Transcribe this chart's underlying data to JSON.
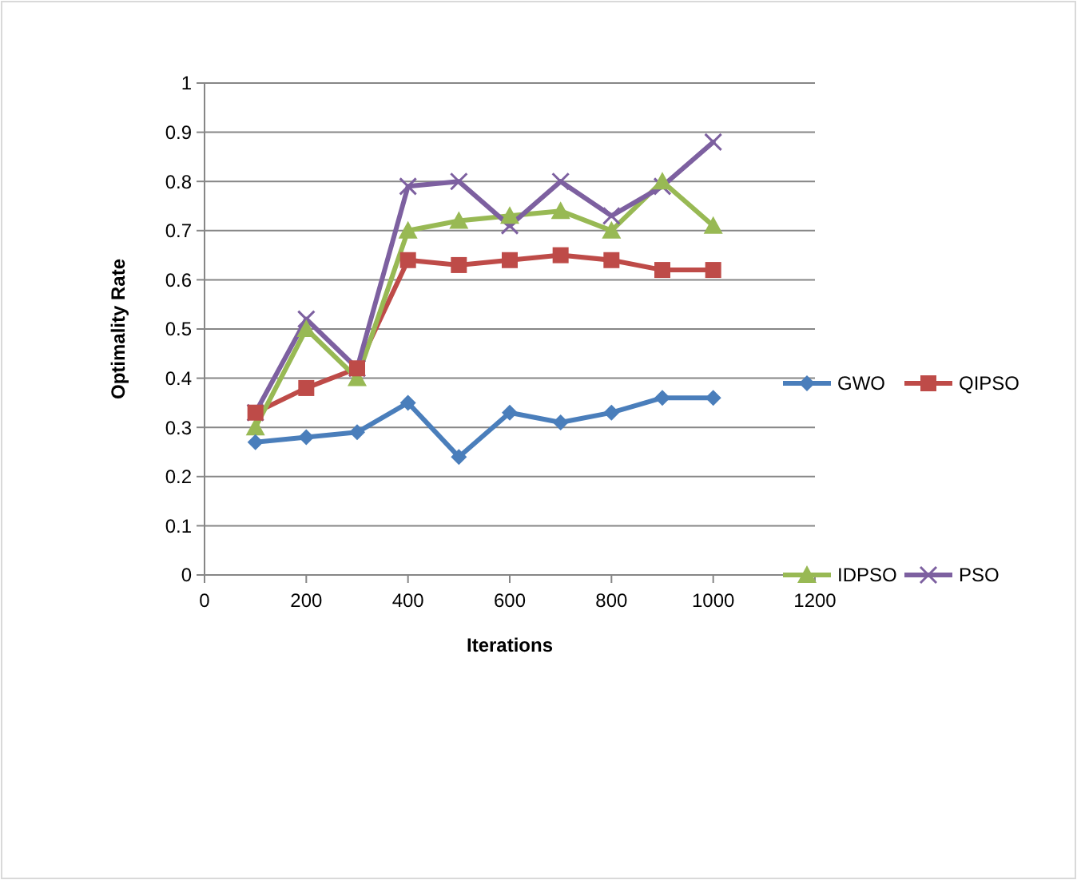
{
  "chart_data": {
    "type": "line",
    "xlabel": "Iterations",
    "ylabel": "Optimality Rate",
    "x": [
      100,
      200,
      300,
      400,
      500,
      600,
      700,
      800,
      900,
      1000
    ],
    "xlim": [
      0,
      1200
    ],
    "xticks": [
      0,
      200,
      400,
      600,
      800,
      1000,
      1200
    ],
    "ylim": [
      0,
      1
    ],
    "yticks": [
      0,
      0.1,
      0.2,
      0.3,
      0.4,
      0.5,
      0.6,
      0.7,
      0.8,
      0.9,
      1
    ],
    "grid": "y",
    "legend": "right",
    "series": [
      {
        "name": "GWO",
        "color": "#4a7ebb",
        "marker": "diamond",
        "values": [
          0.27,
          0.28,
          0.29,
          0.35,
          0.24,
          0.33,
          0.31,
          0.33,
          0.36,
          0.36
        ]
      },
      {
        "name": "QIPSO",
        "color": "#be4b48",
        "marker": "square",
        "values": [
          0.33,
          0.38,
          0.42,
          0.64,
          0.63,
          0.64,
          0.65,
          0.64,
          0.62,
          0.62
        ]
      },
      {
        "name": "IDPSO",
        "color": "#98b954",
        "marker": "triangle",
        "values": [
          0.3,
          0.5,
          0.4,
          0.7,
          0.72,
          0.73,
          0.74,
          0.7,
          0.8,
          0.71
        ]
      },
      {
        "name": "PSO",
        "color": "#7d60a0",
        "marker": "cross",
        "values": [
          0.33,
          0.52,
          0.42,
          0.79,
          0.8,
          0.71,
          0.8,
          0.73,
          0.79,
          0.88
        ]
      }
    ]
  }
}
